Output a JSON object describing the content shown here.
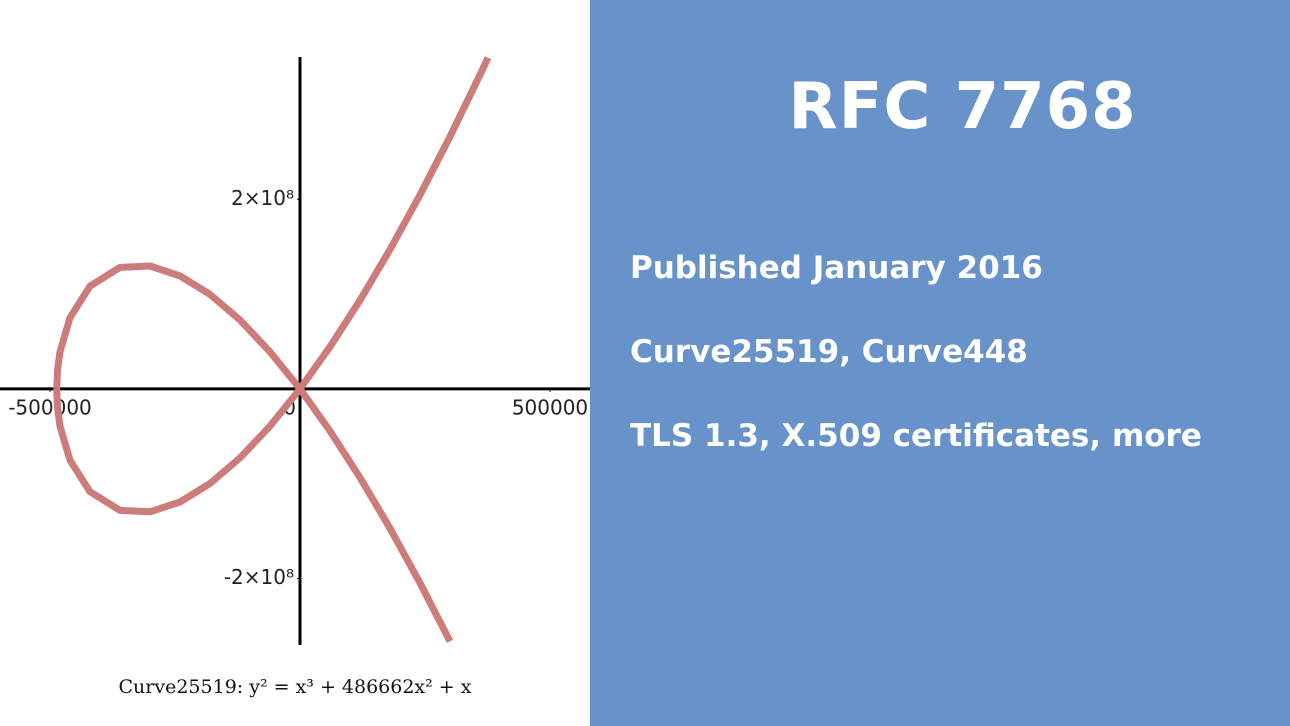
{
  "chart_data": {
    "type": "line",
    "x": [
      -486662,
      -485000,
      -480000,
      -460000,
      -420000,
      -360000,
      -300000,
      -240000,
      -180000,
      -120000,
      -60000,
      0,
      60000,
      120000,
      180000,
      240000,
      300000,
      360000,
      376000
    ],
    "series": [
      {
        "color": "#cd7b7b",
        "values": [
          0,
          -19800000,
          -39200000,
          -75100000,
          -108400000,
          -128100000,
          -129600000,
          -119200000,
          -99700000,
          -72700000,
          -39200000,
          0,
          44400000,
          93500000,
          147000000,
          204600000,
          266100000,
          331200000,
          349200000
        ]
      },
      {
        "color": "#cd7b7b",
        "values": [
          0,
          19800000,
          39200000,
          75100000,
          108400000,
          128100000,
          129600000,
          119200000,
          99700000,
          72700000,
          39200000,
          0,
          -44400000,
          -93500000,
          -147000000,
          -204600000,
          -266100000,
          null,
          null
        ]
      }
    ],
    "xlim": [
      -600000,
      580000
    ],
    "ylim": [
      -270000000,
      350000000
    ],
    "xticks": [
      -500000,
      0,
      500000
    ],
    "yticks": [
      {
        "value": -200000000,
        "label": "-2×10⁸"
      },
      {
        "value": 200000000,
        "label": "2×10⁸"
      }
    ],
    "caption": "Curve25519: y² = x³ + 486662x² + x"
  },
  "slide": {
    "title": "RFC 7768",
    "items": [
      "Published January 2016",
      "Curve25519, Curve448",
      "TLS 1.3, X.509 certificates, more"
    ]
  }
}
